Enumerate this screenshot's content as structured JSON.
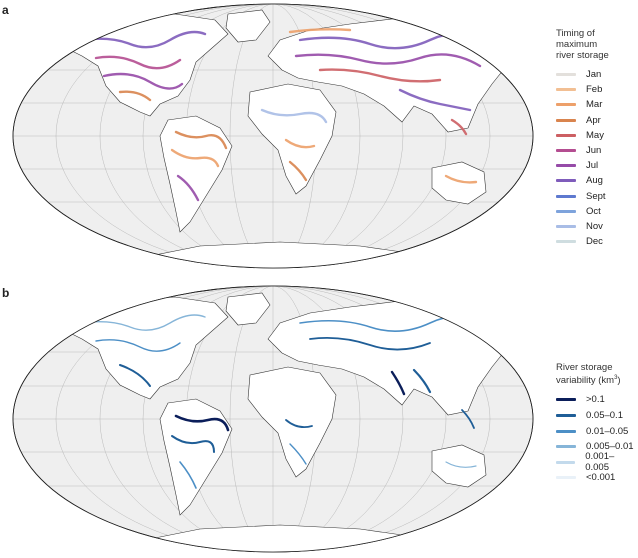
{
  "panel_a": {
    "letter": "a",
    "legend_title_line1": "Timing of maximum",
    "legend_title_line2": "river storage",
    "months": [
      {
        "label": "Jan",
        "color": "#e3e0dc"
      },
      {
        "label": "Feb",
        "color": "#f2bf93"
      },
      {
        "label": "Mar",
        "color": "#eda06a"
      },
      {
        "label": "Apr",
        "color": "#d9844e"
      },
      {
        "label": "May",
        "color": "#cc5f63"
      },
      {
        "label": "Jun",
        "color": "#b44d91"
      },
      {
        "label": "Jul",
        "color": "#964ba8"
      },
      {
        "label": "Aug",
        "color": "#7f5cbb"
      },
      {
        "label": "Sept",
        "color": "#5e79cf"
      },
      {
        "label": "Oct",
        "color": "#7ea3dc"
      },
      {
        "label": "Nov",
        "color": "#a9bde6"
      },
      {
        "label": "Dec",
        "color": "#cfdde0"
      }
    ]
  },
  "panel_b": {
    "letter": "b",
    "legend_title_line1": "River storage",
    "legend_title_line2": "variability (km",
    "legend_title_sup": "3",
    "legend_title_end": ")",
    "classes": [
      {
        "label": ">0.1",
        "color": "#0b1e5a"
      },
      {
        "label": "0.05–0.1",
        "color": "#1f5e97"
      },
      {
        "label": "0.01–0.05",
        "color": "#4c8fc6"
      },
      {
        "label": "0.005–0.01",
        "color": "#86b5d8"
      },
      {
        "label": "0.001–0.005",
        "color": "#c3daec"
      },
      {
        "label": "<0.001",
        "color": "#e9f1f8"
      }
    ]
  }
}
